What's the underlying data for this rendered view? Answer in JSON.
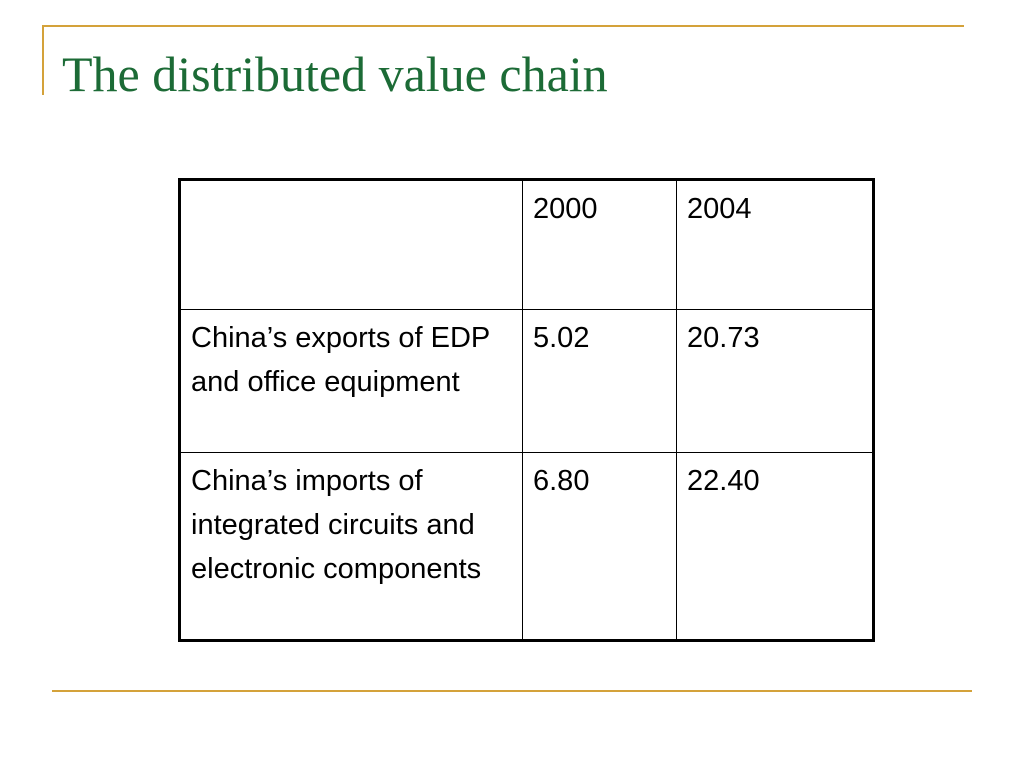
{
  "slide": {
    "title": "The distributed value chain",
    "accent_color": "#d4a23a",
    "title_color": "#1c6b36"
  },
  "table": {
    "header": [
      "",
      "2000",
      "2004"
    ],
    "rows": [
      {
        "label": "China’s exports of EDP and office equipment",
        "values": [
          "5.02",
          "20.73"
        ]
      },
      {
        "label": "China’s imports of integrated circuits and electronic components",
        "values": [
          "6.80",
          "22.40"
        ]
      }
    ]
  }
}
